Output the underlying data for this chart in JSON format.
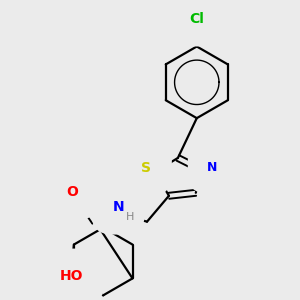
{
  "background_color": "#ebebeb",
  "bond_color": "#000000",
  "atom_colors": {
    "O": "#ff0000",
    "N": "#0000ff",
    "S": "#cccc00",
    "Cl": "#00bb00",
    "H_label": "#888888",
    "C": "#000000"
  },
  "font_size_atom": 10,
  "font_size_small": 8
}
